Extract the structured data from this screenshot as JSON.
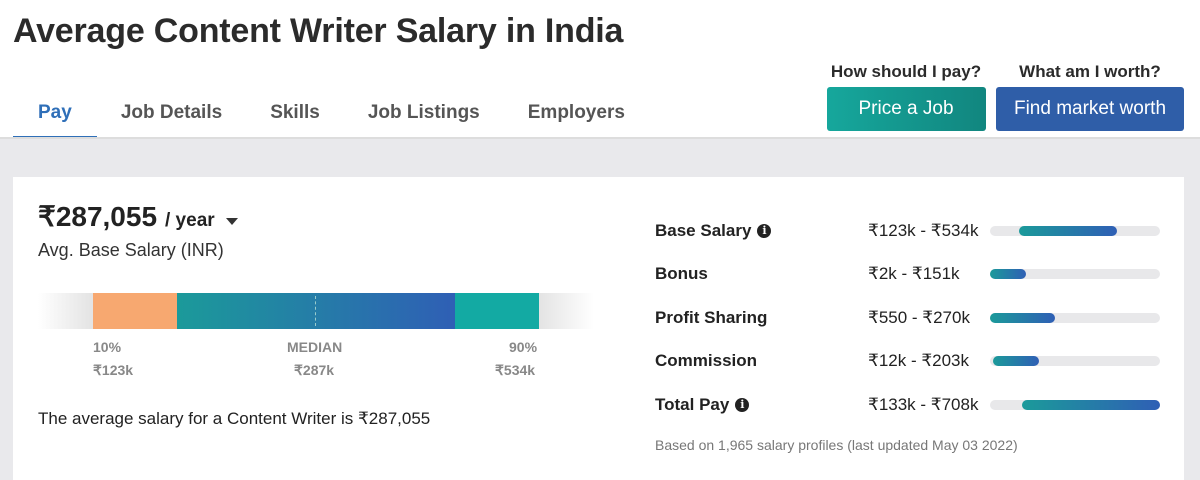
{
  "page": {
    "title": "Average Content Writer Salary in India"
  },
  "tabs": [
    {
      "label": "Pay",
      "active": true
    },
    {
      "label": "Job Details",
      "active": false
    },
    {
      "label": "Skills",
      "active": false
    },
    {
      "label": "Job Listings",
      "active": false
    },
    {
      "label": "Employers",
      "active": false
    }
  ],
  "cta": {
    "price": {
      "question": "How should I pay?",
      "button": "Price a Job"
    },
    "worth": {
      "question": "What am I worth?",
      "button": "Find market worth"
    }
  },
  "salary": {
    "amount": "₹287,055",
    "period": "/ year",
    "label": "Avg. Base Salary (INR)",
    "percentiles": [
      {
        "label": "10%",
        "value": "₹123k"
      },
      {
        "label": "MEDIAN",
        "value": "₹287k"
      },
      {
        "label": "90%",
        "value": "₹534k"
      }
    ],
    "statement": "The average salary for a Content Writer is ₹287,055"
  },
  "pay_rows": [
    {
      "label": "Base Salary",
      "info": true,
      "range": "₹123k - ₹534k",
      "start": 0.17,
      "end": 0.75
    },
    {
      "label": "Bonus",
      "info": false,
      "range": "₹2k - ₹151k",
      "start": 0.0,
      "end": 0.21
    },
    {
      "label": "Profit Sharing",
      "info": false,
      "range": "₹550 - ₹270k",
      "start": 0.0,
      "end": 0.38
    },
    {
      "label": "Commission",
      "info": false,
      "range": "₹12k - ₹203k",
      "start": 0.02,
      "end": 0.29
    },
    {
      "label": "Total Pay",
      "info": true,
      "range": "₹133k - ₹708k",
      "start": 0.19,
      "end": 1.0
    }
  ],
  "footnote": "Based on 1,965 salary profiles (last updated May 03 2022)"
}
